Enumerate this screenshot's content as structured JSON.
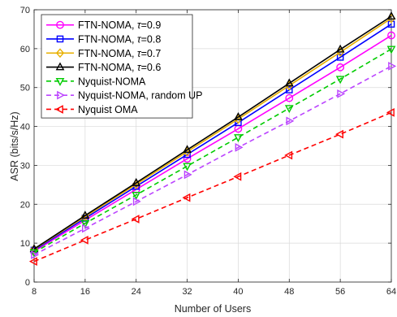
{
  "chart_data": {
    "type": "line",
    "title": "",
    "xlabel": "Number of Users",
    "ylabel": "ASR (bits/s/Hz)",
    "x": [
      8,
      16,
      24,
      32,
      40,
      48,
      56,
      64
    ],
    "xlim": [
      8,
      64
    ],
    "ylim": [
      0,
      70
    ],
    "xticks": [
      "8",
      "16",
      "24",
      "32",
      "40",
      "48",
      "56",
      "64"
    ],
    "yticks": [
      "0",
      "10",
      "20",
      "30",
      "40",
      "50",
      "60",
      "70"
    ],
    "grid": true,
    "legend_position": "top-left",
    "series": [
      {
        "name": "FTN-NOMA, τ=0.9",
        "name_prefix": "FTN-NOMA, ",
        "name_symbol": "τ",
        "name_suffix": "=0.9",
        "color": "#ff00ff",
        "marker": "circle",
        "dash": "solid",
        "values": [
          7.9,
          15.9,
          23.8,
          31.7,
          39.4,
          47.3,
          55.2,
          63.4
        ]
      },
      {
        "name": "FTN-NOMA, τ=0.8",
        "name_prefix": "FTN-NOMA, ",
        "name_symbol": "τ",
        "name_suffix": "=0.8",
        "color": "#0000ff",
        "marker": "square",
        "dash": "solid",
        "values": [
          8.2,
          16.4,
          24.6,
          32.8,
          41.0,
          49.4,
          57.8,
          66.3
        ]
      },
      {
        "name": "FTN-NOMA, τ=0.7",
        "name_prefix": "FTN-NOMA, ",
        "name_symbol": "τ",
        "name_suffix": "=0.7",
        "color": "#e8b000",
        "marker": "diamond",
        "dash": "solid",
        "values": [
          8.4,
          16.8,
          25.1,
          33.5,
          41.9,
          50.5,
          59.1,
          67.8
        ]
      },
      {
        "name": "FTN-NOMA, τ=0.6",
        "name_prefix": "FTN-NOMA, ",
        "name_symbol": "τ",
        "name_suffix": "=0.6",
        "color": "#000000",
        "marker": "triangle-up",
        "dash": "solid",
        "values": [
          8.5,
          17.1,
          25.5,
          34.0,
          42.4,
          51.1,
          59.8,
          68.3
        ]
      },
      {
        "name": "Nyquist-NOMA",
        "color": "#00cc00",
        "marker": "triangle-down",
        "dash": "dashed",
        "values": [
          7.6,
          15.1,
          22.4,
          29.8,
          37.2,
          44.7,
          52.2,
          59.9
        ]
      },
      {
        "name": "Nyquist-NOMA, random UP",
        "color": "#bb44ff",
        "marker": "triangle-right",
        "dash": "dashed",
        "values": [
          7.0,
          13.8,
          20.7,
          27.6,
          34.6,
          41.4,
          48.4,
          55.5
        ]
      },
      {
        "name": "Nyquist OMA",
        "color": "#ff0000",
        "marker": "triangle-left",
        "dash": "dashed",
        "values": [
          5.3,
          10.8,
          16.2,
          21.7,
          27.1,
          32.6,
          38.0,
          43.6
        ]
      }
    ]
  }
}
